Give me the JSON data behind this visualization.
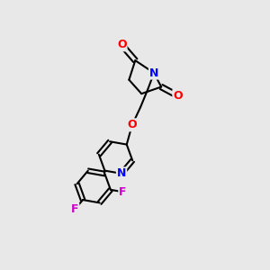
{
  "background_color": "#e8e8e8",
  "bond_color": "#000000",
  "bond_width": 1.5,
  "atom_colors": {
    "N": "#0000ff",
    "O": "#ff0000",
    "F": "#cc00cc",
    "C": "#000000"
  },
  "font_size_atom": 8,
  "fig_width": 3.0,
  "fig_height": 3.0
}
